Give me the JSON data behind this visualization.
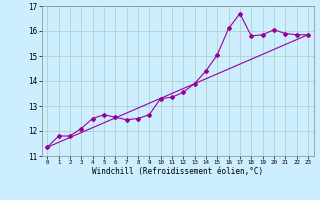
{
  "title": "",
  "xlabel": "Windchill (Refroidissement éolien,°C)",
  "bg_color": "#cceeff",
  "grid_color": "#aaccbb",
  "line_color": "#990099",
  "xlim": [
    -0.5,
    23.5
  ],
  "ylim": [
    11,
    17
  ],
  "xticks": [
    0,
    1,
    2,
    3,
    4,
    5,
    6,
    7,
    8,
    9,
    10,
    11,
    12,
    13,
    14,
    15,
    16,
    17,
    18,
    19,
    20,
    21,
    22,
    23
  ],
  "yticks": [
    11,
    12,
    13,
    14,
    15,
    16,
    17
  ],
  "series1_x": [
    0,
    1,
    2,
    3,
    4,
    5,
    6,
    7,
    8,
    9,
    10,
    11,
    12,
    13,
    14,
    15,
    16,
    17,
    18,
    19,
    20,
    21,
    22,
    23
  ],
  "series1_y": [
    11.35,
    11.8,
    11.8,
    12.1,
    12.5,
    12.65,
    12.55,
    12.45,
    12.5,
    12.65,
    13.3,
    13.35,
    13.55,
    13.9,
    14.4,
    15.05,
    16.1,
    16.7,
    15.8,
    15.85,
    16.05,
    15.9,
    15.85,
    15.85
  ],
  "series2_x": [
    0,
    23
  ],
  "series2_y": [
    11.35,
    15.85
  ]
}
